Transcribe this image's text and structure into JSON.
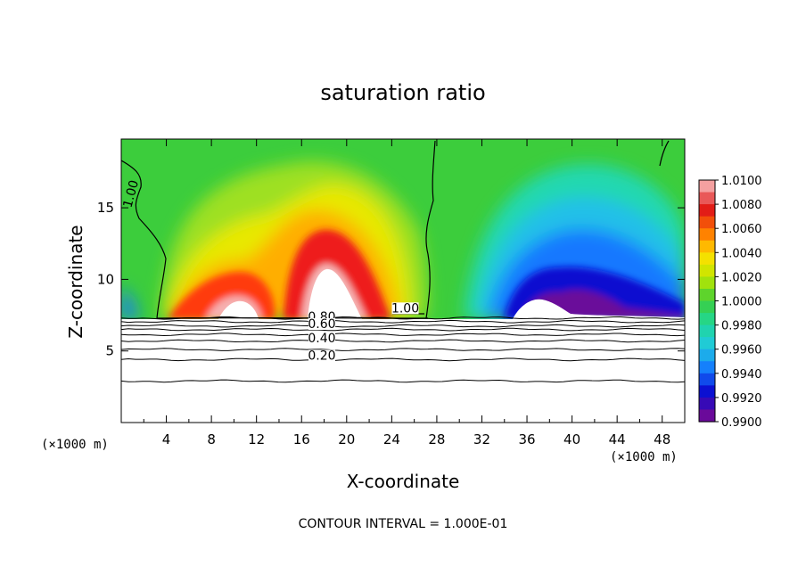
{
  "chart_data": {
    "type": "heatmap",
    "title": "saturation ratio",
    "xlabel": "X-coordinate",
    "ylabel": "Z-coordinate",
    "x_unit_label": "(×1000 m)",
    "y_unit_label": "(×1000 m)",
    "xlim": [
      0,
      50
    ],
    "ylim": [
      0,
      19.8
    ],
    "x_ticks": [
      4,
      8,
      12,
      16,
      20,
      24,
      28,
      32,
      36,
      40,
      44,
      48
    ],
    "x_tick_labels": [
      "4",
      "8",
      "12",
      "16",
      "20",
      "24",
      "28",
      "32",
      "36",
      "40",
      "44",
      "48"
    ],
    "y_ticks": [
      5,
      10,
      15
    ],
    "y_tick_labels": [
      "5",
      "10",
      "15"
    ],
    "footer": "CONTOUR INTERVAL = 1.000E-01",
    "colorbar": {
      "levels": [
        "1.0100",
        "1.0080",
        "1.0060",
        "1.0040",
        "1.0020",
        "1.0000",
        "0.9980",
        "0.9960",
        "0.9940",
        "0.9920",
        "0.9900"
      ],
      "colors": [
        "#f4a0a0",
        "#e01818",
        "#ff7700",
        "#ffe000",
        "#bce800",
        "#3ccd3c",
        "#20d898",
        "#20c8e0",
        "#1478ff",
        "#0a0ad0",
        "#6a0a9a"
      ],
      "min": 0.99,
      "max": 1.01
    },
    "contour_labels": [
      {
        "text": "1.00",
        "x": 1.2,
        "z": 15.9
      },
      {
        "text": "1.00",
        "x": 25.2,
        "z": 7.7
      },
      {
        "text": "0.80",
        "x": 17.8,
        "z": 7.1
      },
      {
        "text": "0.60",
        "x": 17.8,
        "z": 6.6
      },
      {
        "text": "0.40",
        "x": 17.8,
        "z": 5.6
      },
      {
        "text": "0.20",
        "x": 17.8,
        "z": 4.4
      }
    ],
    "lower_contours": [
      {
        "level": 0.9,
        "z": 7.3
      },
      {
        "level": 0.8,
        "z": 7.05
      },
      {
        "level": 0.7,
        "z": 6.75
      },
      {
        "level": 0.6,
        "z": 6.5
      },
      {
        "level": 0.5,
        "z": 6.15
      },
      {
        "level": 0.4,
        "z": 5.7
      },
      {
        "level": 0.3,
        "z": 5.1
      },
      {
        "level": 0.2,
        "z": 4.4
      },
      {
        "level": 0.1,
        "z": 2.9
      }
    ],
    "features": [
      {
        "x": 10,
        "z": 8.3,
        "value": 1.01
      },
      {
        "x": 18.5,
        "z": 10.5,
        "value": 1.01
      },
      {
        "x": 38,
        "z": 9,
        "value": 0.99
      },
      {
        "x": 43,
        "z": 8.6,
        "value": 0.99
      }
    ]
  }
}
